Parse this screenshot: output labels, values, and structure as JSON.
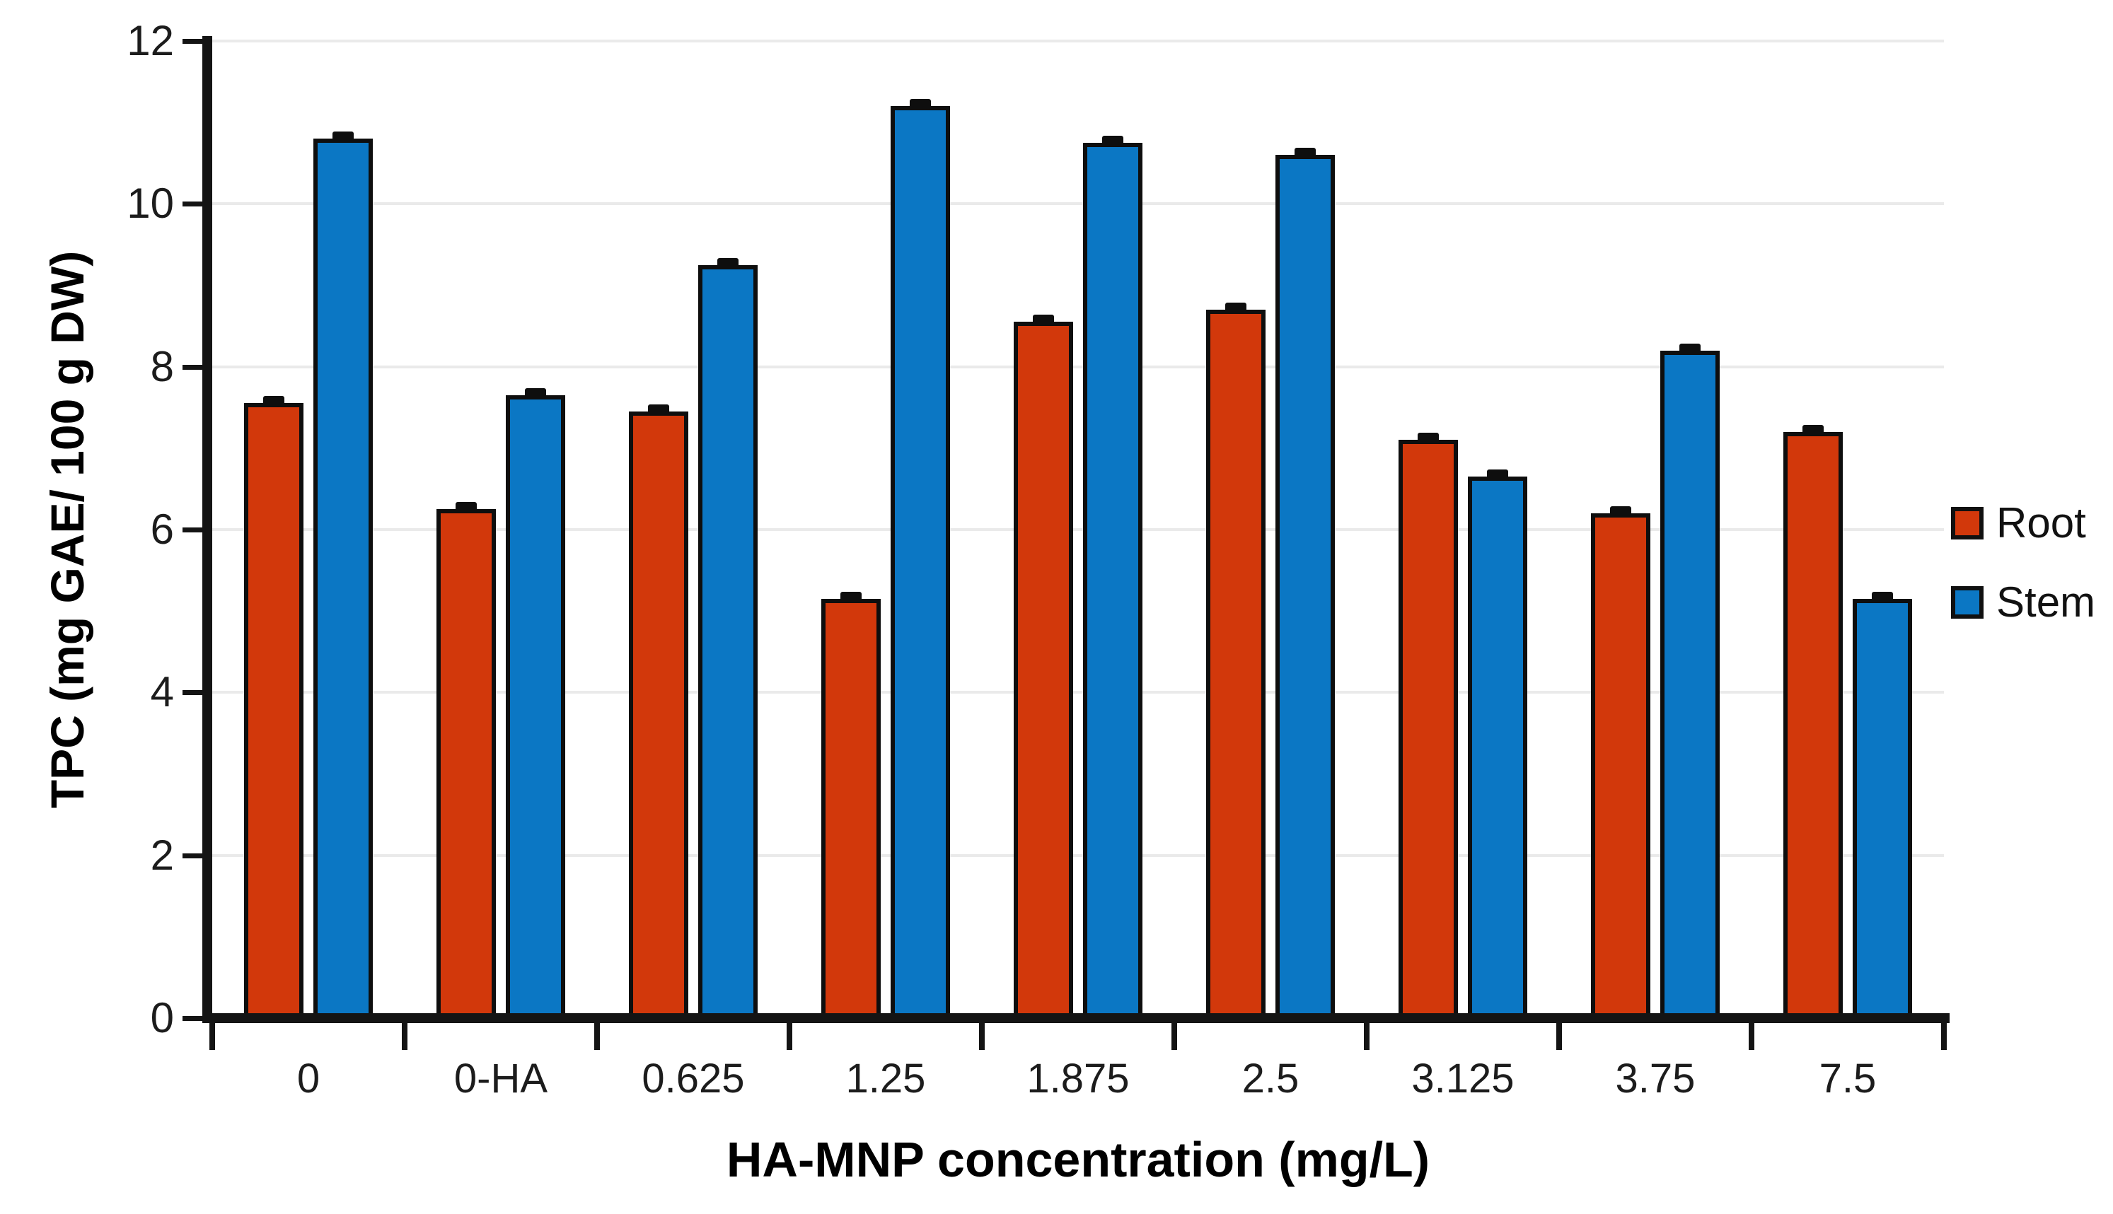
{
  "chart_data": {
    "type": "bar",
    "title": "",
    "xlabel": "HA-MNP concentration (mg/L)",
    "ylabel": "TPC (mg GAE/ 100 g DW)",
    "ylim": [
      0,
      12
    ],
    "yticks": [
      0,
      2,
      4,
      6,
      8,
      10,
      12
    ],
    "grid": true,
    "legend_position": "right",
    "categories": [
      "0",
      "0-HA",
      "0.625",
      "1.25",
      "1.875",
      "2.5",
      "3.125",
      "3.75",
      "7.5"
    ],
    "series": [
      {
        "name": "Root",
        "color": "#D2380B",
        "values": [
          7.55,
          6.25,
          7.45,
          5.15,
          8.55,
          8.7,
          7.1,
          6.2,
          7.2
        ],
        "error": 0.07
      },
      {
        "name": "Stem",
        "color": "#0B77C4",
        "values": [
          10.8,
          7.65,
          9.25,
          11.2,
          10.75,
          10.6,
          6.65,
          8.2,
          5.15
        ],
        "error": 0.07
      }
    ]
  },
  "colors": {
    "axis": "#141414",
    "grid": "#eaeaea",
    "bar_border": "#0e0e0e",
    "background": "#ffffff"
  }
}
